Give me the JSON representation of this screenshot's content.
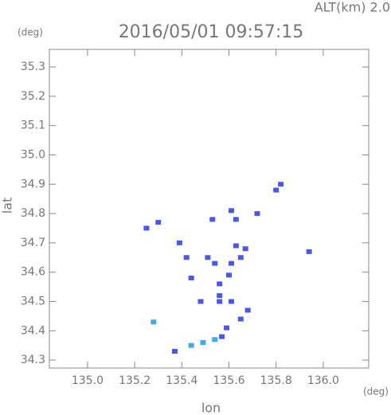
{
  "chart_data": {
    "type": "scatter",
    "title": "2016/05/01 09:57:15",
    "subtitle": "ALT(km) 2.0",
    "x_label": "lon",
    "y_label": "lat",
    "x_unit": "(deg)",
    "y_unit": "(deg)",
    "xlim": [
      134.838,
      136.193
    ],
    "ylim": [
      34.273,
      35.36
    ],
    "xticks": [
      {
        "value": 135.0,
        "label": "135.0"
      },
      135.2,
      135.4,
      135.6,
      135.8,
      {
        "value": 136.0,
        "label": "136.0"
      }
    ],
    "yticks": [
      34.3,
      34.4,
      34.5,
      34.6,
      34.7,
      34.8,
      34.9,
      {
        "value": 35.0,
        "label": "35.0"
      },
      35.1,
      35.2,
      35.3
    ],
    "grid": false,
    "series": [
      {
        "color": "#4b57e8",
        "x": [
          135.25,
          135.3,
          135.53,
          135.63,
          135.61,
          135.72,
          135.82,
          135.8,
          135.39,
          135.42,
          135.44,
          135.51,
          135.54,
          135.61,
          135.65,
          135.67,
          135.63,
          135.6,
          135.56,
          135.56,
          135.56,
          135.61,
          135.48,
          135.68,
          135.65,
          135.59,
          135.57,
          135.94,
          135.37
        ],
        "y": [
          34.75,
          34.77,
          34.78,
          34.78,
          34.81,
          34.8,
          34.9,
          34.88,
          34.7,
          34.65,
          34.58,
          34.65,
          34.63,
          34.63,
          34.65,
          34.68,
          34.69,
          34.59,
          34.56,
          34.52,
          34.5,
          34.5,
          34.5,
          34.47,
          34.44,
          34.41,
          34.38,
          34.67,
          34.33
        ]
      },
      {
        "color": "#3aaee8",
        "x": [
          135.28,
          135.44,
          135.49,
          135.54
        ],
        "y": [
          34.43,
          34.35,
          34.36,
          34.37
        ]
      }
    ]
  }
}
